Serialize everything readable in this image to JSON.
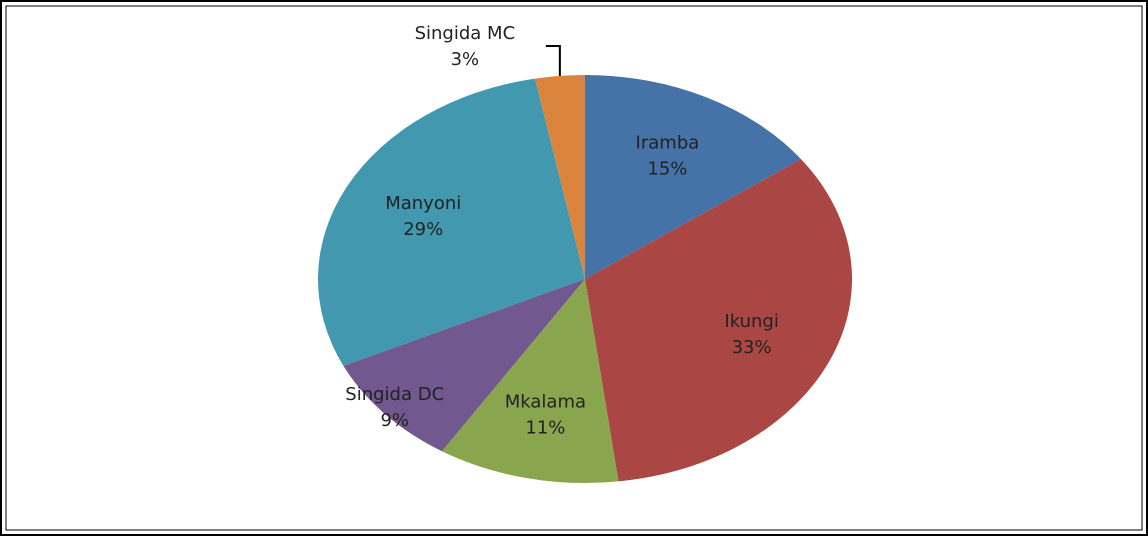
{
  "chart_data": {
    "type": "pie",
    "categories": [
      "Iramba",
      "Ikungi",
      "Mkalama",
      "Singida DC",
      "Manyoni",
      "Singida MC"
    ],
    "values": [
      15,
      33,
      11,
      9,
      29,
      3
    ],
    "value_labels": [
      "15%",
      "33%",
      "11%",
      "9%",
      "29%",
      "3%"
    ],
    "colors": [
      "#4572a7",
      "#aa4643",
      "#89a54e",
      "#71588f",
      "#4198af",
      "#db843d"
    ]
  }
}
